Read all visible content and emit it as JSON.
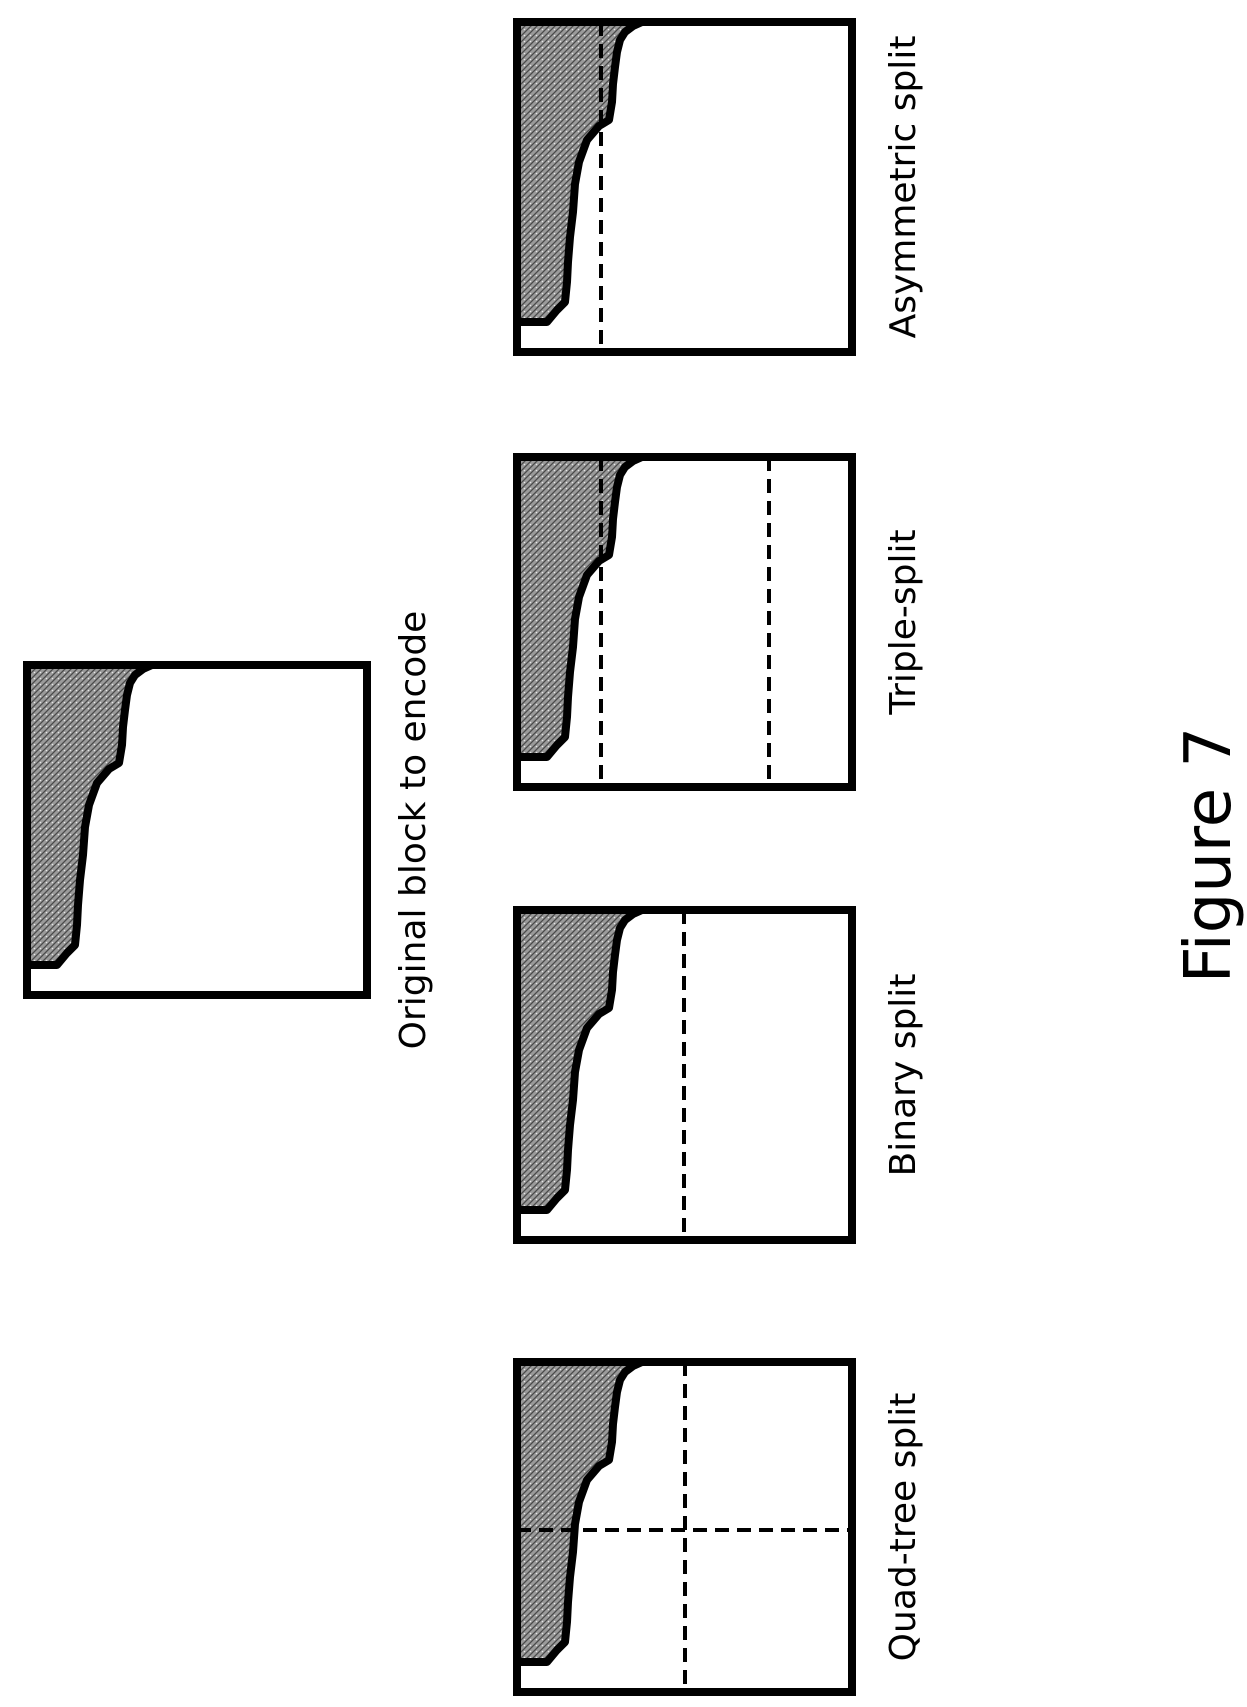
{
  "labels": {
    "original": "Original block to encode",
    "quad_tree": "Quad-tree split",
    "binary": "Binary split",
    "triple": "Triple-split",
    "asymmetric": "Asymmetric split",
    "figure": "Figure 7"
  },
  "colors": {
    "stroke": "#000000",
    "texture_fill": "#8c8c8c",
    "background": "#ffffff"
  }
}
